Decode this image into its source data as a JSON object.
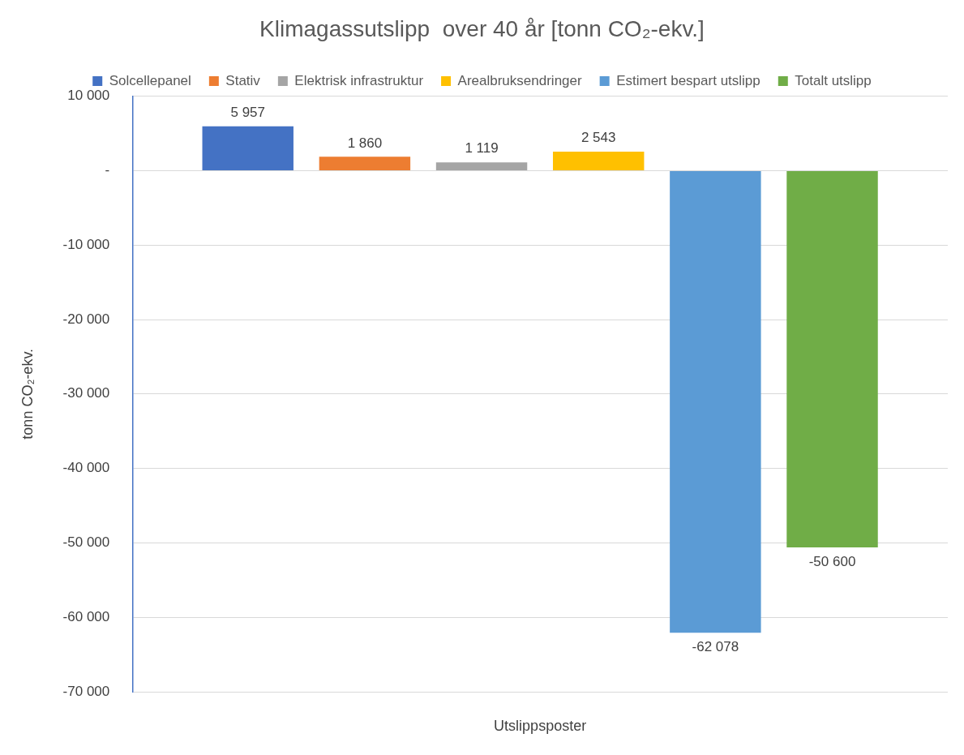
{
  "chart_data": {
    "type": "bar",
    "title": "Klimagassutslipp  over 40 år [tonn CO₂-ekv.]",
    "xlabel": "Utslippsposter",
    "ylabel": "tonn CO₂-ekv.",
    "categories": [
      null
    ],
    "series": [
      {
        "name": "Solcellepanel",
        "color": "#4472c4",
        "values": [
          5957
        ],
        "value_labels": [
          "5 957"
        ]
      },
      {
        "name": "Stativ",
        "color": "#ed7d31",
        "values": [
          1860
        ],
        "value_labels": [
          "1 860"
        ]
      },
      {
        "name": "Elektrisk infrastruktur",
        "color": "#a5a5a5",
        "values": [
          1119
        ],
        "value_labels": [
          "1 119"
        ]
      },
      {
        "name": "Arealbruksendringer",
        "color": "#ffc000",
        "values": [
          2543
        ],
        "value_labels": [
          "2 543"
        ]
      },
      {
        "name": "Estimert bespart utslipp",
        "color": "#5b9bd5",
        "values": [
          -62078
        ],
        "value_labels": [
          "-62 078"
        ]
      },
      {
        "name": "Totalt utslipp",
        "color": "#70ad47",
        "values": [
          -50600
        ],
        "value_labels": [
          "-50 600"
        ]
      }
    ],
    "ylim": [
      -70000,
      10000
    ],
    "yticks": [
      {
        "value": 10000,
        "label": "10 000"
      },
      {
        "value": 0,
        "label": "-"
      },
      {
        "value": -10000,
        "label": "-10 000"
      },
      {
        "value": -20000,
        "label": "-20 000"
      },
      {
        "value": -30000,
        "label": "-30 000"
      },
      {
        "value": -40000,
        "label": "-40 000"
      },
      {
        "value": -50000,
        "label": "-50 000"
      },
      {
        "value": -60000,
        "label": "-60 000"
      },
      {
        "value": -70000,
        "label": "-70 000"
      }
    ],
    "grid": "y",
    "legend": "top"
  }
}
